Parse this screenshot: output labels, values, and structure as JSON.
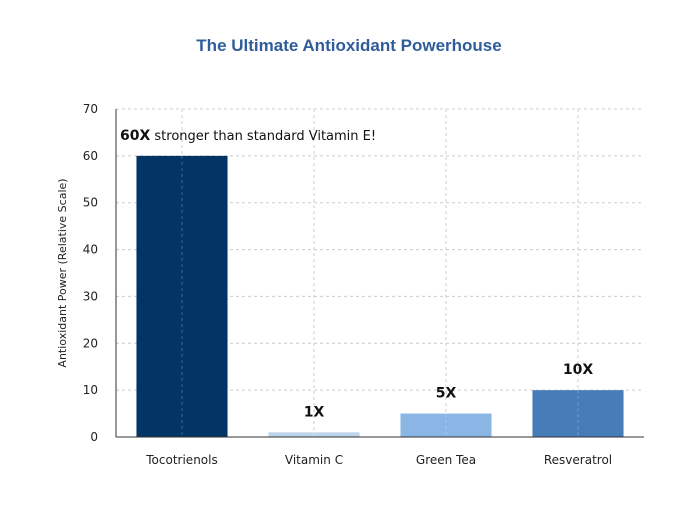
{
  "chart_data": {
    "type": "bar",
    "title": "The Ultimate Antioxidant Powerhouse",
    "xlabel": "",
    "ylabel": "Antioxidant Power (Relative Scale)",
    "categories": [
      "Tocotrienols",
      "Vitamin C",
      "Green Tea",
      "Resveratrol"
    ],
    "values": [
      60,
      1,
      5,
      10
    ],
    "colors": [
      "#033466",
      "#bdd5ea",
      "#8ab6e6",
      "#467db8"
    ],
    "ylim": [
      0,
      70
    ],
    "yticks": [
      0,
      10,
      20,
      30,
      40,
      50,
      60,
      70
    ],
    "grid": true,
    "annotations": [
      {
        "category": "Tocotrienols",
        "bold": "60X",
        "text": " stronger than standard Vitamin E!"
      },
      {
        "category": "Vitamin C",
        "bold": "1X",
        "text": ""
      },
      {
        "category": "Green Tea",
        "bold": "5X",
        "text": ""
      },
      {
        "category": "Resveratrol",
        "bold": "10X",
        "text": ""
      }
    ]
  }
}
